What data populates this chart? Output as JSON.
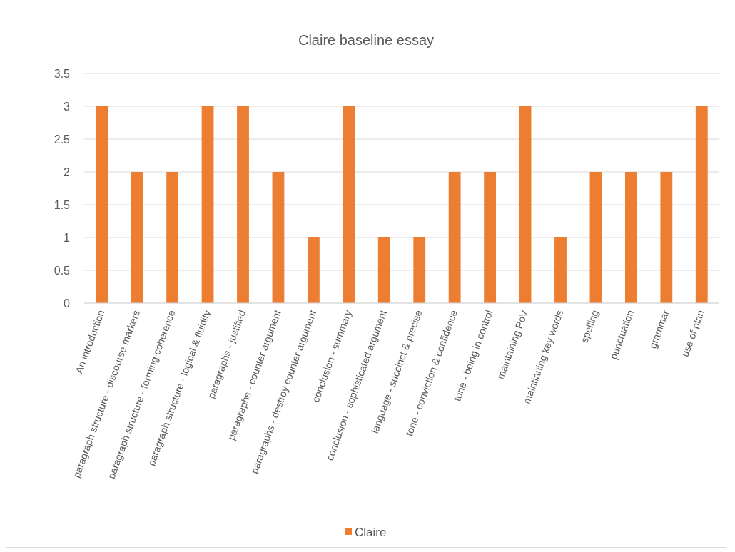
{
  "chart_data": {
    "type": "bar",
    "title": "Claire baseline essay",
    "categories": [
      "An introduction",
      "paragraph structure - discourse markers",
      "paragraph structure - forming coherence",
      "paragraph structure - logical & fluidity",
      "paragraphs - justified",
      "paragraphs - counter argument",
      "paragraphs - destroy counter argument",
      "conclusion - summary",
      "conclusion - sophisticated argument",
      "language - succinct & precise",
      "tone - conviction & confidence",
      "tone - being in control",
      "maintaining PoV",
      "maintianing key words",
      "spelling",
      "punctuation",
      "grammar",
      "use of plan"
    ],
    "series": [
      {
        "name": "Claire",
        "color": "#ed7d31",
        "values": [
          3,
          2,
          2,
          3,
          3,
          2,
          1,
          3,
          1,
          1,
          2,
          2,
          3,
          1,
          2,
          2,
          2,
          3
        ]
      }
    ],
    "ylim": [
      0,
      3.5
    ],
    "yticks": [
      0,
      0.5,
      1,
      1.5,
      2,
      2.5,
      3,
      3.5
    ],
    "grid": "y",
    "legend": "bottom"
  }
}
